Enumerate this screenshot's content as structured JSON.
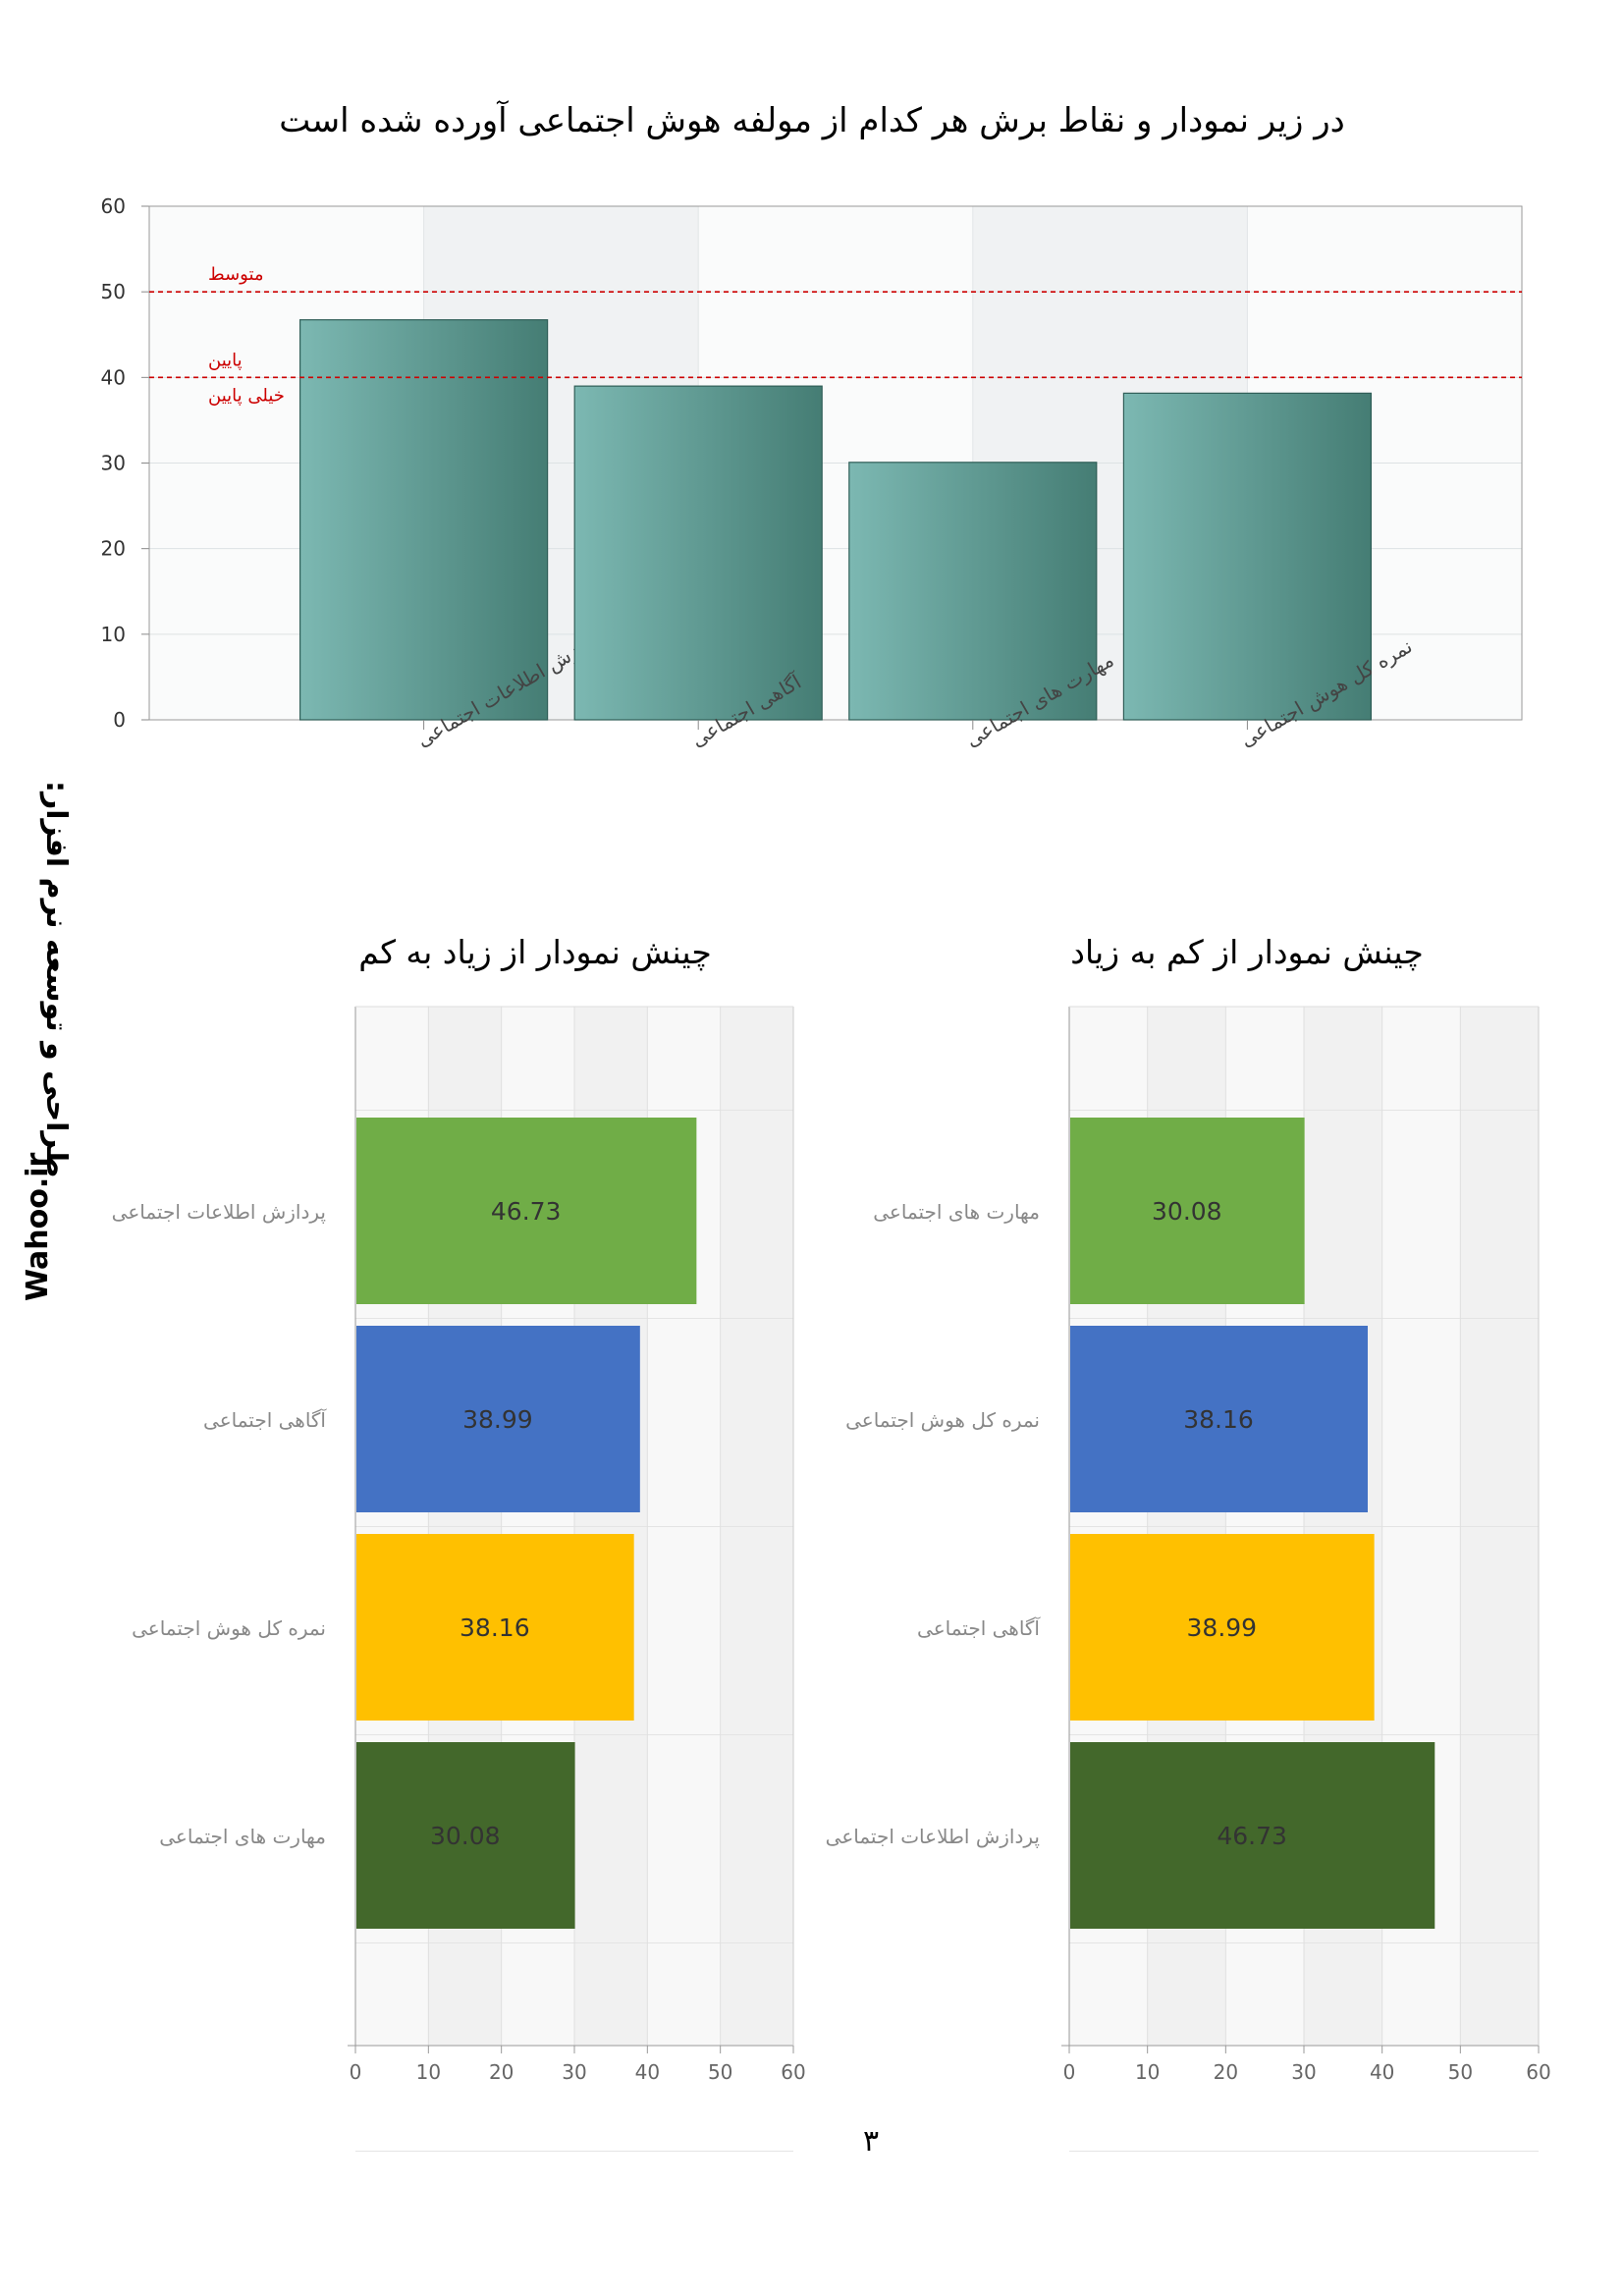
{
  "page": {
    "title": "در زیر نمودار و نقاط برش هر کدام از مولفه هوش اجتماعی آورده شده است",
    "side_credit": "طراحی و توسعه نرم افزار:",
    "side_site": "Wahoo.ir",
    "page_number": "۳"
  },
  "colors": {
    "bar_teal_light": "#7cb8b2",
    "bar_teal_dark": "#457d74",
    "cutoff_line": "#cc0000",
    "green_light": "#70ad47",
    "blue": "#4472c4",
    "yellow": "#ffc000",
    "green_dark": "#43682b"
  },
  "chart_data": [
    {
      "type": "bar",
      "categories": [
        "پردازش اطلاعات اجتماعی",
        "آگاهی اجتماعی",
        "مهارت های اجتماعی",
        "نمره کل هوش اجتماعی"
      ],
      "values": [
        46.73,
        38.99,
        30.08,
        38.16
      ],
      "ylim": [
        0,
        60
      ],
      "yticks": [
        0,
        10,
        20,
        30,
        40,
        50,
        60
      ],
      "grid": true,
      "cutoffs": [
        {
          "value": 50,
          "label": "متوسط",
          "side": "above"
        },
        {
          "value": 40,
          "label": "پایین",
          "side": "above"
        },
        {
          "value": 40,
          "label": "خیلی پایین",
          "side": "below"
        }
      ]
    },
    {
      "type": "bar",
      "orientation": "horizontal",
      "title": "چینش نمودار از زیاد به کم",
      "categories": [
        "پردازش اطلاعات اجتماعی",
        "آگاهی اجتماعی",
        "نمره کل هوش اجتماعی",
        "مهارت های اجتماعی"
      ],
      "values": [
        46.73,
        38.99,
        38.16,
        30.08
      ],
      "value_labels": [
        "46.73",
        "38.99",
        "38.16",
        "30.08"
      ],
      "bar_colors": [
        "#70ad47",
        "#4472c4",
        "#ffc000",
        "#43682b"
      ],
      "xlim": [
        0,
        60
      ],
      "xticks": [
        0,
        10,
        20,
        30,
        40,
        50,
        60
      ],
      "grid": true
    },
    {
      "type": "bar",
      "orientation": "horizontal",
      "title": "چینش نمودار از کم به زیاد",
      "categories": [
        "مهارت های اجتماعی",
        "نمره کل هوش اجتماعی",
        "آگاهی اجتماعی",
        "پردازش اطلاعات اجتماعی"
      ],
      "values": [
        30.08,
        38.16,
        38.99,
        46.73
      ],
      "value_labels": [
        "30.08",
        "38.16",
        "38.99",
        "46.73"
      ],
      "bar_colors": [
        "#70ad47",
        "#4472c4",
        "#ffc000",
        "#43682b"
      ],
      "xlim": [
        0,
        60
      ],
      "xticks": [
        0,
        10,
        20,
        30,
        40,
        50,
        60
      ],
      "grid": true
    }
  ]
}
